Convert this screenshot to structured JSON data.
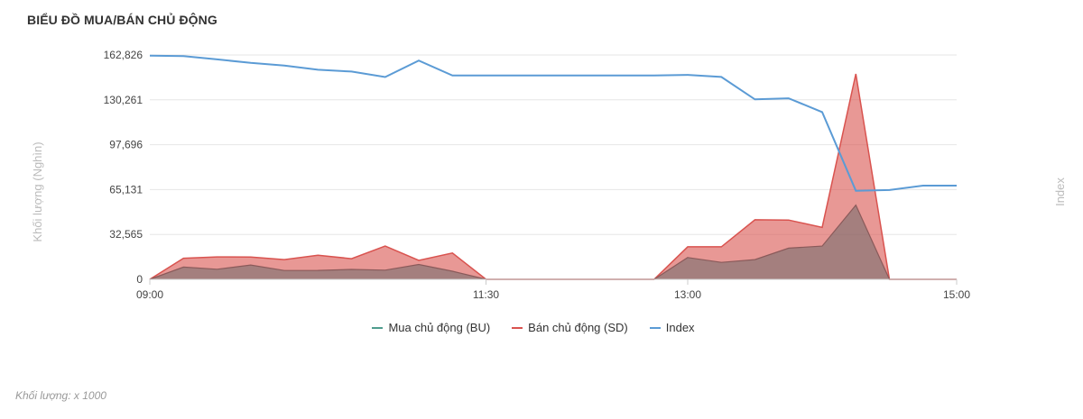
{
  "title": "BIỂU ĐỒ MUA/BÁN CHỦ ĐỘNG",
  "footnote": "Khối lượng: x 1000",
  "colors": {
    "bu": "#4f9d8e",
    "sd": "#d9534f",
    "index": "#5b9bd5"
  },
  "chart_data": {
    "type": "area",
    "ylabel": "Khối lượng (Nghìn)",
    "y2label": "Index",
    "yticks": [
      "162,826",
      "130,261",
      "97,696",
      "65,131",
      "32,565",
      "0"
    ],
    "ytick_values": [
      162826,
      130261,
      97696,
      65131,
      32565,
      0
    ],
    "ylim": [
      0,
      162826
    ],
    "xticks": [
      "09:00",
      "11:30",
      "13:00",
      "15:00"
    ],
    "xtick_minutes": [
      540,
      690,
      780,
      900
    ],
    "xlim": [
      540,
      900
    ],
    "grid": true,
    "legend_position": "bottom",
    "x": [
      "09:00",
      "09:15",
      "09:30",
      "09:45",
      "10:00",
      "10:15",
      "10:30",
      "10:45",
      "11:00",
      "11:15",
      "11:30",
      "11:45",
      "12:00",
      "12:15",
      "12:30",
      "12:45",
      "13:00",
      "13:15",
      "13:30",
      "13:45",
      "14:00",
      "14:15",
      "14:30",
      "14:45",
      "15:00"
    ],
    "x_minutes": [
      540,
      555,
      570,
      585,
      600,
      615,
      630,
      645,
      660,
      675,
      690,
      705,
      720,
      735,
      750,
      765,
      780,
      795,
      810,
      825,
      840,
      855,
      870,
      885,
      900
    ],
    "series": [
      {
        "name": "Mua chủ động (BU)",
        "values": [
          0,
          8900,
          7300,
          10400,
          6400,
          6500,
          7200,
          6700,
          10800,
          5900,
          0,
          0,
          0,
          0,
          0,
          0,
          15800,
          12300,
          14300,
          22600,
          24100,
          53900,
          0,
          0,
          0
        ]
      },
      {
        "name": "Bán chủ động (SD)",
        "values": [
          0,
          15300,
          16300,
          16200,
          14300,
          17500,
          15000,
          24200,
          13700,
          19100,
          0,
          0,
          0,
          0,
          0,
          0,
          23600,
          23600,
          43200,
          43000,
          37700,
          149100,
          0,
          0,
          0
        ]
      },
      {
        "name": "Index",
        "values": [
          162400,
          162000,
          159600,
          157100,
          155100,
          152100,
          150800,
          146800,
          158800,
          147900,
          147900,
          147900,
          147900,
          147900,
          147900,
          147900,
          148400,
          146900,
          130600,
          131400,
          121400,
          64300,
          64800,
          68000,
          68000
        ]
      }
    ]
  }
}
